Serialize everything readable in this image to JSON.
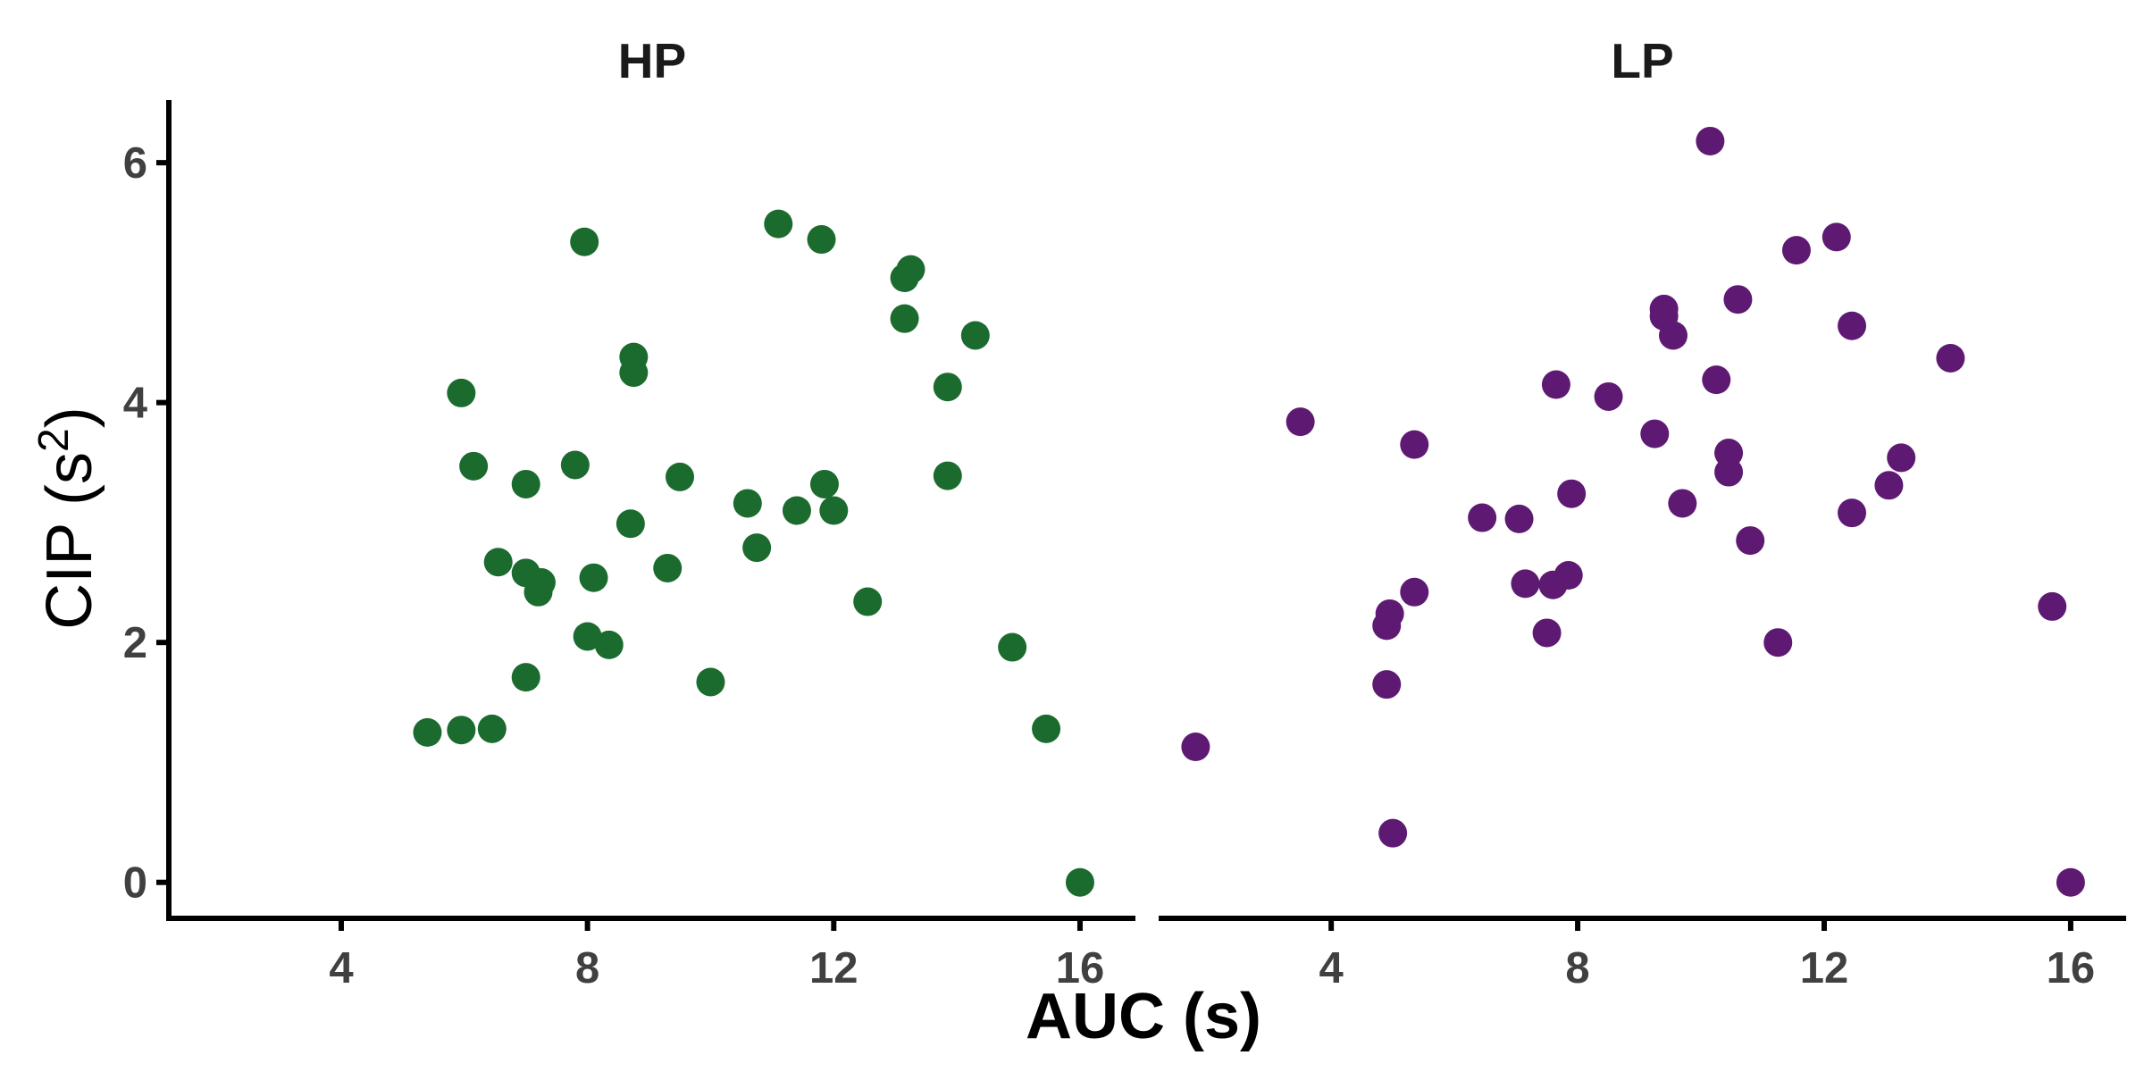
{
  "chart_data": {
    "type": "scatter",
    "xlabel": "AUC (s)",
    "ylabel_main": "CIP (s",
    "ylabel_sup": "2",
    "ylabel_close": ")",
    "xlim": [
      1.2,
      16.9
    ],
    "ylim": [
      -0.3,
      6.5
    ],
    "xticks": [
      4,
      8,
      12,
      16
    ],
    "yticks": [
      0,
      2,
      4,
      6
    ],
    "grid": false,
    "legend": "none",
    "panels": [
      {
        "title": "HP",
        "color": "#1b6b2f",
        "points": [
          {
            "x": 5.4,
            "y": 1.25
          },
          {
            "x": 5.95,
            "y": 1.27
          },
          {
            "x": 6.45,
            "y": 1.28
          },
          {
            "x": 5.95,
            "y": 4.08
          },
          {
            "x": 6.15,
            "y": 3.47
          },
          {
            "x": 6.55,
            "y": 2.67
          },
          {
            "x": 7.0,
            "y": 3.32
          },
          {
            "x": 7.0,
            "y": 2.58
          },
          {
            "x": 7.25,
            "y": 2.5
          },
          {
            "x": 7.2,
            "y": 2.42
          },
          {
            "x": 7.0,
            "y": 1.71
          },
          {
            "x": 7.8,
            "y": 3.48
          },
          {
            "x": 7.95,
            "y": 5.34
          },
          {
            "x": 8.0,
            "y": 2.05
          },
          {
            "x": 8.1,
            "y": 2.54
          },
          {
            "x": 8.35,
            "y": 1.98
          },
          {
            "x": 8.7,
            "y": 2.99
          },
          {
            "x": 8.75,
            "y": 4.38
          },
          {
            "x": 8.75,
            "y": 4.25
          },
          {
            "x": 9.3,
            "y": 2.62
          },
          {
            "x": 9.5,
            "y": 3.38
          },
          {
            "x": 10.0,
            "y": 1.67
          },
          {
            "x": 10.6,
            "y": 3.16
          },
          {
            "x": 10.75,
            "y": 2.79
          },
          {
            "x": 11.1,
            "y": 5.49
          },
          {
            "x": 11.4,
            "y": 3.1
          },
          {
            "x": 11.8,
            "y": 5.36
          },
          {
            "x": 11.85,
            "y": 3.32
          },
          {
            "x": 12.0,
            "y": 3.1
          },
          {
            "x": 12.55,
            "y": 2.34
          },
          {
            "x": 13.15,
            "y": 5.04
          },
          {
            "x": 13.25,
            "y": 5.11
          },
          {
            "x": 13.15,
            "y": 4.7
          },
          {
            "x": 13.85,
            "y": 4.13
          },
          {
            "x": 13.85,
            "y": 3.39
          },
          {
            "x": 14.3,
            "y": 4.56
          },
          {
            "x": 14.9,
            "y": 1.96
          },
          {
            "x": 15.45,
            "y": 1.28
          },
          {
            "x": 16.0,
            "y": 0.0
          }
        ]
      },
      {
        "title": "LP",
        "color": "#5e1a72",
        "points": [
          {
            "x": 1.8,
            "y": 1.13
          },
          {
            "x": 3.5,
            "y": 3.84
          },
          {
            "x": 4.9,
            "y": 2.14
          },
          {
            "x": 4.95,
            "y": 2.24
          },
          {
            "x": 4.9,
            "y": 1.65
          },
          {
            "x": 5.0,
            "y": 0.41
          },
          {
            "x": 5.35,
            "y": 2.42
          },
          {
            "x": 5.35,
            "y": 3.65
          },
          {
            "x": 6.45,
            "y": 3.04
          },
          {
            "x": 7.05,
            "y": 3.03
          },
          {
            "x": 7.15,
            "y": 2.49
          },
          {
            "x": 7.5,
            "y": 2.08
          },
          {
            "x": 7.6,
            "y": 2.48
          },
          {
            "x": 7.65,
            "y": 4.15
          },
          {
            "x": 7.85,
            "y": 2.56
          },
          {
            "x": 7.9,
            "y": 3.24
          },
          {
            "x": 8.5,
            "y": 4.05
          },
          {
            "x": 9.25,
            "y": 3.74
          },
          {
            "x": 9.4,
            "y": 4.78
          },
          {
            "x": 9.4,
            "y": 4.72
          },
          {
            "x": 9.55,
            "y": 4.56
          },
          {
            "x": 9.7,
            "y": 3.16
          },
          {
            "x": 10.15,
            "y": 6.18
          },
          {
            "x": 10.25,
            "y": 4.19
          },
          {
            "x": 10.45,
            "y": 3.58
          },
          {
            "x": 10.45,
            "y": 3.42
          },
          {
            "x": 10.6,
            "y": 4.86
          },
          {
            "x": 10.8,
            "y": 2.85
          },
          {
            "x": 11.25,
            "y": 2.0
          },
          {
            "x": 11.55,
            "y": 5.27
          },
          {
            "x": 12.2,
            "y": 5.38
          },
          {
            "x": 12.45,
            "y": 3.08
          },
          {
            "x": 12.45,
            "y": 4.64
          },
          {
            "x": 13.05,
            "y": 3.31
          },
          {
            "x": 13.25,
            "y": 3.54
          },
          {
            "x": 14.05,
            "y": 4.37
          },
          {
            "x": 15.7,
            "y": 2.3
          },
          {
            "x": 16.0,
            "y": 0.0
          }
        ]
      }
    ]
  }
}
